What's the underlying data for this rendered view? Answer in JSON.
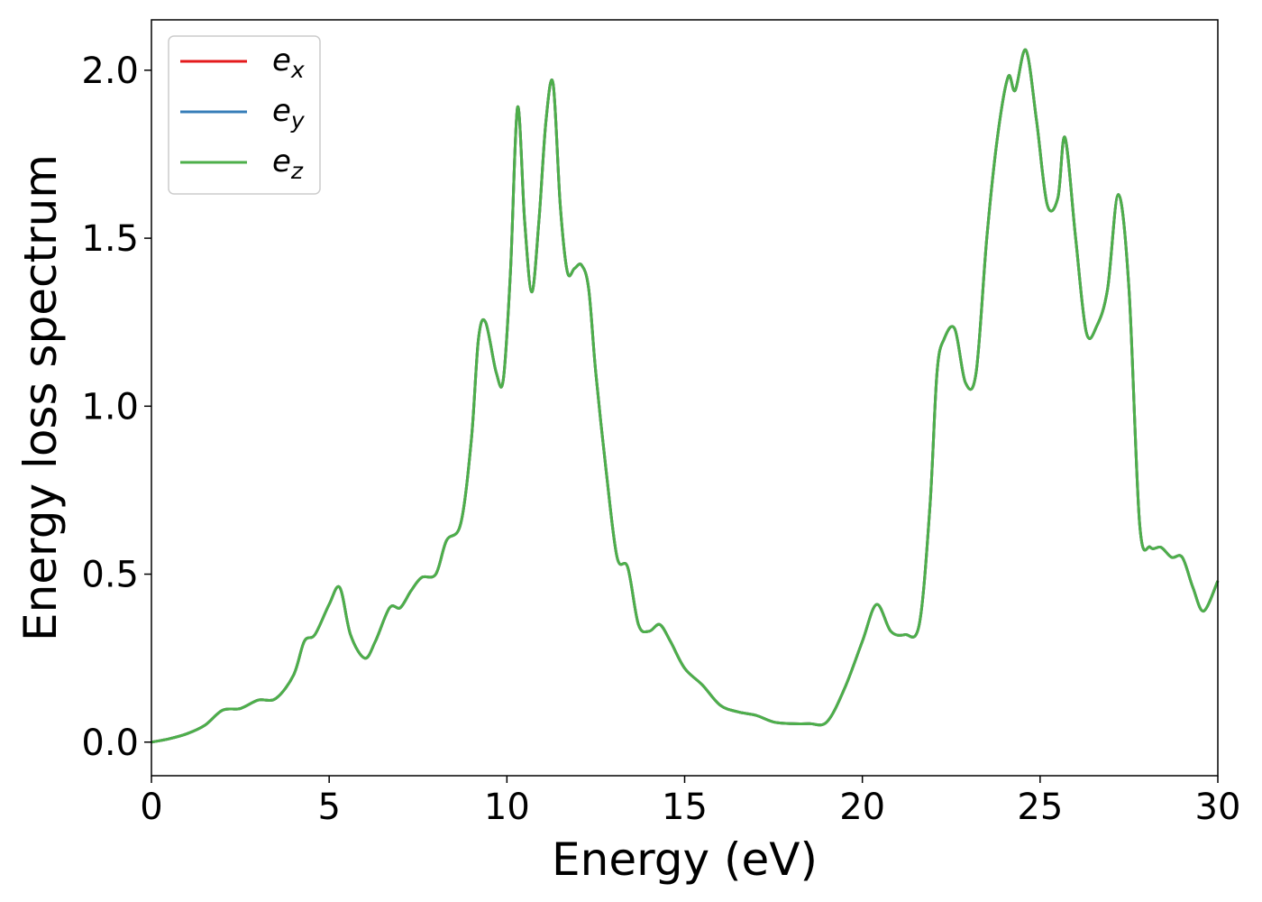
{
  "chart_data": {
    "type": "line",
    "title": "",
    "xlabel": "Energy (eV)",
    "ylabel": "Energy loss spectrum",
    "xlim": [
      0,
      30
    ],
    "ylim": [
      -0.1,
      2.15
    ],
    "xticks": [
      0,
      5,
      10,
      15,
      20,
      25,
      30
    ],
    "xtick_labels": [
      "0",
      "5",
      "10",
      "15",
      "20",
      "25",
      "30"
    ],
    "yticks": [
      0.0,
      0.5,
      1.0,
      1.5,
      2.0
    ],
    "ytick_labels": [
      "0.0",
      "0.5",
      "1.0",
      "1.5",
      "2.0"
    ],
    "grid": false,
    "legend_position": "top-left",
    "x": [
      0,
      0.5,
      1.0,
      1.5,
      2.0,
      2.5,
      3.0,
      3.5,
      4.0,
      4.3,
      4.6,
      5.0,
      5.3,
      5.6,
      6.0,
      6.3,
      6.7,
      7.0,
      7.3,
      7.6,
      8.0,
      8.3,
      8.7,
      9.0,
      9.2,
      9.4,
      9.7,
      9.9,
      10.1,
      10.3,
      10.5,
      10.7,
      10.9,
      11.1,
      11.3,
      11.5,
      11.7,
      11.9,
      12.1,
      12.3,
      12.5,
      12.8,
      13.1,
      13.4,
      13.7,
      14.0,
      14.3,
      14.6,
      15.0,
      15.5,
      16.0,
      16.5,
      17.0,
      17.5,
      18.0,
      18.5,
      19.0,
      19.5,
      20.0,
      20.4,
      20.8,
      21.2,
      21.6,
      21.9,
      22.1,
      22.3,
      22.6,
      22.9,
      23.2,
      23.5,
      23.8,
      24.1,
      24.3,
      24.6,
      24.9,
      25.2,
      25.5,
      25.7,
      26.0,
      26.3,
      26.6,
      26.9,
      27.2,
      27.5,
      27.8,
      28.1,
      28.4,
      28.7,
      29.0,
      29.3,
      29.6,
      30.0
    ],
    "series": [
      {
        "name": "e_x",
        "color": "#e41a1c",
        "values": [
          0,
          0.01,
          0.025,
          0.05,
          0.095,
          0.1,
          0.125,
          0.13,
          0.2,
          0.3,
          0.32,
          0.41,
          0.46,
          0.32,
          0.25,
          0.3,
          0.4,
          0.4,
          0.45,
          0.49,
          0.5,
          0.6,
          0.65,
          0.9,
          1.2,
          1.25,
          1.1,
          1.08,
          1.4,
          1.89,
          1.55,
          1.34,
          1.55,
          1.85,
          1.96,
          1.6,
          1.4,
          1.41,
          1.42,
          1.35,
          1.1,
          0.8,
          0.55,
          0.52,
          0.35,
          0.33,
          0.35,
          0.3,
          0.22,
          0.17,
          0.11,
          0.09,
          0.08,
          0.06,
          0.055,
          0.055,
          0.06,
          0.16,
          0.3,
          0.41,
          0.33,
          0.32,
          0.35,
          0.7,
          1.1,
          1.2,
          1.23,
          1.07,
          1.1,
          1.5,
          1.8,
          1.98,
          1.94,
          2.06,
          1.85,
          1.6,
          1.62,
          1.8,
          1.5,
          1.22,
          1.24,
          1.35,
          1.63,
          1.35,
          0.65,
          0.58,
          0.58,
          0.55,
          0.55,
          0.46,
          0.39,
          0.48
        ]
      },
      {
        "name": "e_y",
        "color": "#377eb8",
        "values": [
          0,
          0.01,
          0.025,
          0.05,
          0.095,
          0.1,
          0.125,
          0.13,
          0.2,
          0.3,
          0.32,
          0.41,
          0.46,
          0.32,
          0.25,
          0.3,
          0.4,
          0.4,
          0.45,
          0.49,
          0.5,
          0.6,
          0.65,
          0.9,
          1.2,
          1.25,
          1.1,
          1.08,
          1.4,
          1.89,
          1.55,
          1.34,
          1.55,
          1.85,
          1.96,
          1.6,
          1.4,
          1.41,
          1.42,
          1.35,
          1.1,
          0.8,
          0.55,
          0.52,
          0.35,
          0.33,
          0.35,
          0.3,
          0.22,
          0.17,
          0.11,
          0.09,
          0.08,
          0.06,
          0.055,
          0.055,
          0.06,
          0.16,
          0.3,
          0.41,
          0.33,
          0.32,
          0.35,
          0.7,
          1.1,
          1.2,
          1.23,
          1.07,
          1.1,
          1.5,
          1.8,
          1.98,
          1.94,
          2.06,
          1.85,
          1.6,
          1.62,
          1.8,
          1.5,
          1.22,
          1.24,
          1.35,
          1.63,
          1.35,
          0.65,
          0.58,
          0.58,
          0.55,
          0.55,
          0.46,
          0.39,
          0.48
        ]
      },
      {
        "name": "e_z",
        "color": "#4daf4a",
        "values": [
          0,
          0.01,
          0.025,
          0.05,
          0.095,
          0.1,
          0.125,
          0.13,
          0.2,
          0.3,
          0.32,
          0.41,
          0.46,
          0.32,
          0.25,
          0.3,
          0.4,
          0.4,
          0.45,
          0.49,
          0.5,
          0.6,
          0.65,
          0.9,
          1.2,
          1.25,
          1.1,
          1.08,
          1.4,
          1.89,
          1.55,
          1.34,
          1.55,
          1.85,
          1.96,
          1.6,
          1.4,
          1.41,
          1.42,
          1.35,
          1.1,
          0.8,
          0.55,
          0.52,
          0.35,
          0.33,
          0.35,
          0.3,
          0.22,
          0.17,
          0.11,
          0.09,
          0.08,
          0.06,
          0.055,
          0.055,
          0.06,
          0.16,
          0.3,
          0.41,
          0.33,
          0.32,
          0.35,
          0.7,
          1.1,
          1.2,
          1.23,
          1.07,
          1.1,
          1.5,
          1.8,
          1.98,
          1.94,
          2.06,
          1.85,
          1.6,
          1.62,
          1.8,
          1.5,
          1.22,
          1.24,
          1.35,
          1.63,
          1.35,
          0.65,
          0.58,
          0.58,
          0.55,
          0.55,
          0.46,
          0.39,
          0.48
        ]
      }
    ],
    "legend": [
      {
        "base": "e",
        "sub": "x",
        "color": "#e41a1c"
      },
      {
        "base": "e",
        "sub": "y",
        "color": "#377eb8"
      },
      {
        "base": "e",
        "sub": "z",
        "color": "#4daf4a"
      }
    ]
  }
}
